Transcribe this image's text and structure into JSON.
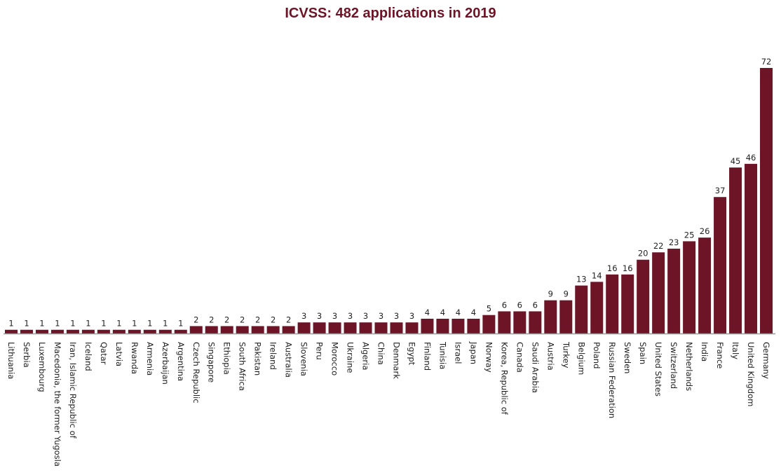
{
  "chart_data": {
    "type": "bar",
    "title": "ICVSS: 482 applications in 2019",
    "xlabel": "",
    "ylabel": "",
    "ylim": [
      0,
      72
    ],
    "grid": false,
    "bar_color": "#6d1426",
    "categories": [
      "Lithuania",
      "Serbia",
      "Luxembourg",
      "Macedonia, the former Yugosla",
      "Iran, Islamic Republic of",
      "Iceland",
      "Qatar",
      "Latvia",
      "Rwanda",
      "Armenia",
      "Azerbaijan",
      "Argentina",
      "Czech Republic",
      "Singapore",
      "Ethiopia",
      "South Africa",
      "Pakistan",
      "Ireland",
      "Australia",
      "Slovenia",
      "Peru",
      "Morocco",
      "Ukraine",
      "Algeria",
      "China",
      "Denmark",
      "Egypt",
      "Finland",
      "Tunisia",
      "Israel",
      "Japan",
      "Norway",
      "Korea, Republic of",
      "Canada",
      "Saudi Arabia",
      "Austria",
      "Turkey",
      "Belgium",
      "Poland",
      "Russian Federation",
      "Sweden",
      "Spain",
      "United States",
      "Switzerland",
      "Netherlands",
      "India",
      "France",
      "Italy",
      "United Kingdom",
      "Germany"
    ],
    "values": [
      1,
      1,
      1,
      1,
      1,
      1,
      1,
      1,
      1,
      1,
      1,
      1,
      2,
      2,
      2,
      2,
      2,
      2,
      2,
      3,
      3,
      3,
      3,
      3,
      3,
      3,
      3,
      4,
      4,
      4,
      4,
      5,
      6,
      6,
      6,
      9,
      9,
      13,
      14,
      16,
      16,
      20,
      22,
      23,
      25,
      26,
      37,
      45,
      46,
      72
    ]
  }
}
